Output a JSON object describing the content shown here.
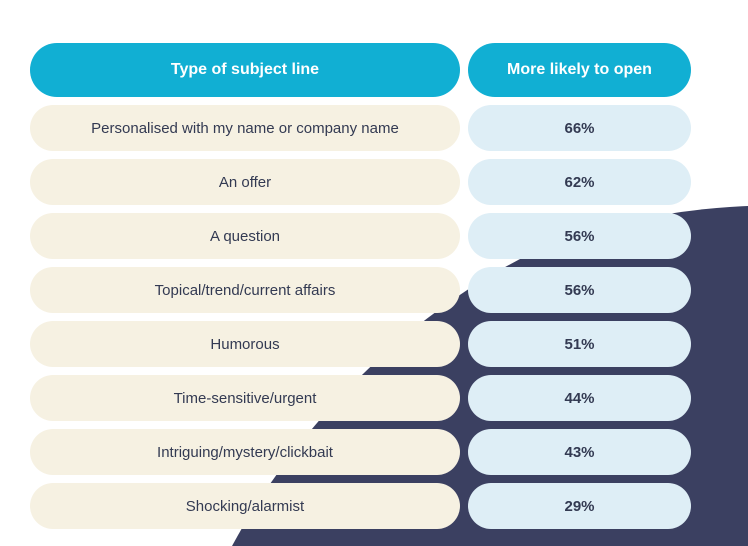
{
  "colors": {
    "header_bg": "#11afd3",
    "label_bg": "#f6f1e2",
    "value_bg": "#deeef6",
    "shape_bg": "#3b4061",
    "text_dark": "#333a52"
  },
  "chart_data": {
    "type": "table",
    "columns": [
      "Type of subject line",
      "More likely to open"
    ],
    "rows": [
      {
        "label": "Personalised with my name or company name",
        "value": "66%"
      },
      {
        "label": "An offer",
        "value": "62%"
      },
      {
        "label": "A question",
        "value": "56%"
      },
      {
        "label": "Topical/trend/current affairs",
        "value": "56%"
      },
      {
        "label": "Humorous",
        "value": "51%"
      },
      {
        "label": "Time-sensitive/urgent",
        "value": "44%"
      },
      {
        "label": "Intriguing/mystery/clickbait",
        "value": "43%"
      },
      {
        "label": "Shocking/alarmist",
        "value": "29%"
      }
    ]
  }
}
